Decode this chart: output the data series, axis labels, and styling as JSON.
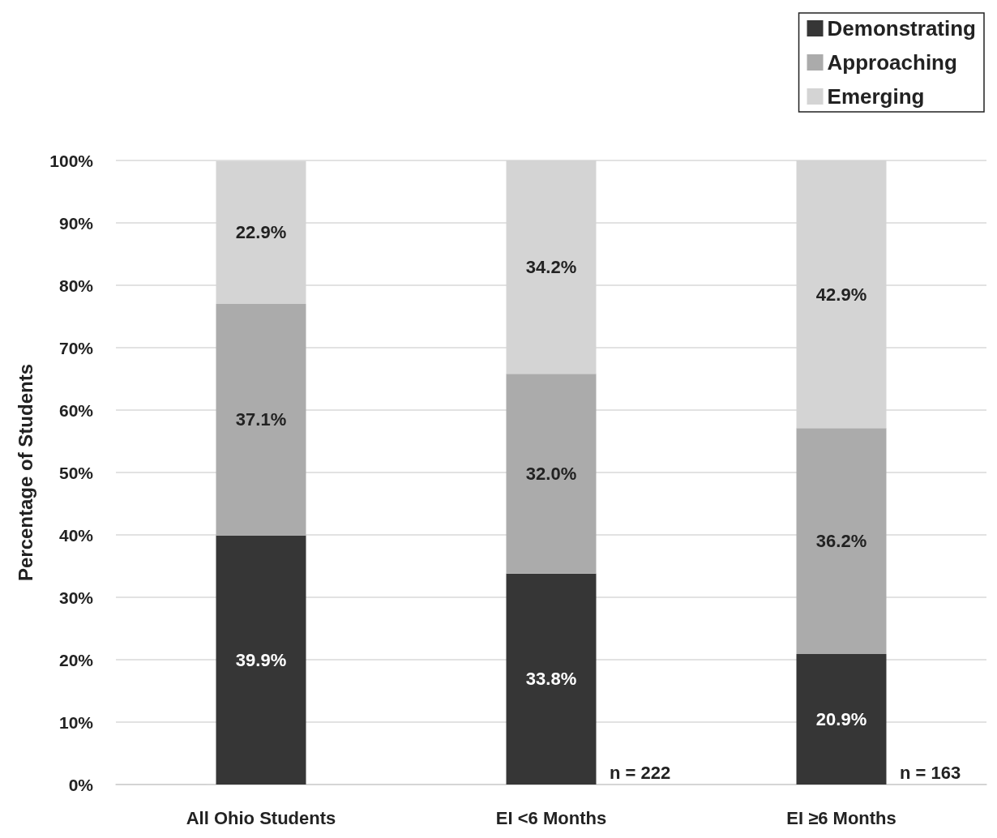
{
  "chart_data": {
    "type": "bar",
    "stacked": true,
    "ylabel": "Percentage of Students",
    "categories": [
      "All Ohio Students",
      "EI <6 Months",
      "EI ≥6 Months"
    ],
    "series": [
      {
        "name": "Demonstrating",
        "color": "#363636",
        "values": [
          39.9,
          33.8,
          20.9
        ],
        "value_labels": [
          "39.9%",
          "33.8%",
          "20.9%"
        ]
      },
      {
        "name": "Approaching",
        "color": "#ababab",
        "values": [
          37.1,
          32.0,
          36.2
        ],
        "value_labels": [
          "37.1%",
          "32.0%",
          "36.2%"
        ]
      },
      {
        "name": "Emerging",
        "color": "#d4d4d4",
        "values": [
          22.9,
          34.2,
          42.9
        ],
        "value_labels": [
          "22.9%",
          "34.2%",
          "42.9%"
        ]
      }
    ],
    "ylim": [
      0,
      100
    ],
    "yticks": [
      {
        "value": 0,
        "label": "0%"
      },
      {
        "value": 10,
        "label": "10%"
      },
      {
        "value": 20,
        "label": "20%"
      },
      {
        "value": 30,
        "label": "30%"
      },
      {
        "value": 40,
        "label": "40%"
      },
      {
        "value": 50,
        "label": "50%"
      },
      {
        "value": 60,
        "label": "60%"
      },
      {
        "value": 70,
        "label": "70%"
      },
      {
        "value": 80,
        "label": "80%"
      },
      {
        "value": 90,
        "label": "90%"
      },
      {
        "value": 100,
        "label": "100%"
      }
    ],
    "grid": "y",
    "legend": "top right",
    "annotations": [
      "n = 222",
      "n = 163"
    ]
  }
}
